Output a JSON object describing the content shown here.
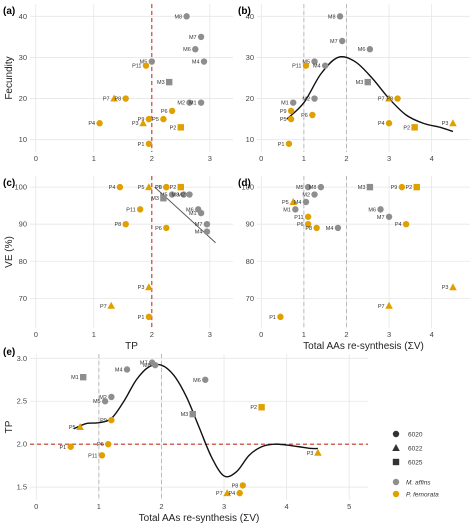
{
  "colors": {
    "m_affins": "#8e8e8e",
    "p_femorata": "#e0a000",
    "grid": "#e6e6e6",
    "ref_red": "#c0392b",
    "ref_gray": "#b5b5b5",
    "curve": "#111111"
  },
  "legend": {
    "shapes": [
      {
        "label": "6020",
        "shape": "circle"
      },
      {
        "label": "6022",
        "shape": "triangle"
      },
      {
        "label": "6025",
        "shape": "square"
      }
    ],
    "species": [
      {
        "label": "M. affins",
        "color": "#8e8e8e"
      },
      {
        "label": "P. femorata",
        "color": "#e0a000"
      }
    ]
  },
  "chart_data": [
    {
      "panel_label": "(a)",
      "type": "scatter",
      "xlabel": "",
      "ylabel": "Fecundity",
      "xlim": [
        -0.1,
        3.4
      ],
      "ylim": [
        7,
        43
      ],
      "xticks": [
        0,
        1,
        2,
        3
      ],
      "yticks": [
        10,
        20,
        30,
        40
      ],
      "vlines": [
        {
          "x": 2,
          "style": "red-dashed"
        }
      ],
      "points": [
        {
          "label": "M8",
          "x": 2.6,
          "y": 40,
          "sp": "M",
          "shape": "circle"
        },
        {
          "label": "M7",
          "x": 2.85,
          "y": 35,
          "sp": "M",
          "shape": "circle"
        },
        {
          "label": "M6",
          "x": 2.75,
          "y": 32,
          "sp": "M",
          "shape": "circle"
        },
        {
          "label": "M4",
          "x": 2.9,
          "y": 29,
          "sp": "M",
          "shape": "circle"
        },
        {
          "label": "M5",
          "x": 2.0,
          "y": 29,
          "sp": "M",
          "shape": "circle"
        },
        {
          "label": "M3",
          "x": 2.3,
          "y": 24,
          "sp": "M",
          "shape": "square"
        },
        {
          "label": "M2",
          "x": 2.65,
          "y": 19,
          "sp": "M",
          "shape": "circle"
        },
        {
          "label": "M1",
          "x": 2.85,
          "y": 19,
          "sp": "M",
          "shape": "circle"
        },
        {
          "label": "P11",
          "x": 1.9,
          "y": 28,
          "sp": "P",
          "shape": "circle"
        },
        {
          "label": "P7",
          "x": 1.35,
          "y": 20,
          "sp": "P",
          "shape": "triangle"
        },
        {
          "label": "P8",
          "x": 1.55,
          "y": 20,
          "sp": "P",
          "shape": "circle"
        },
        {
          "label": "P6",
          "x": 2.35,
          "y": 17,
          "sp": "P",
          "shape": "circle"
        },
        {
          "label": "P4",
          "x": 1.1,
          "y": 14,
          "sp": "P",
          "shape": "circle"
        },
        {
          "label": "P9",
          "x": 1.95,
          "y": 15,
          "sp": "P",
          "shape": "circle"
        },
        {
          "label": "P3",
          "x": 1.85,
          "y": 14,
          "sp": "P",
          "shape": "triangle"
        },
        {
          "label": "P5",
          "x": 2.2,
          "y": 15,
          "sp": "P",
          "shape": "circle"
        },
        {
          "label": "P2",
          "x": 2.5,
          "y": 13,
          "sp": "P",
          "shape": "square"
        },
        {
          "label": "P1",
          "x": 1.95,
          "y": 9,
          "sp": "P",
          "shape": "circle"
        }
      ]
    },
    {
      "panel_label": "(b)",
      "type": "scatter",
      "xlabel": "",
      "ylabel": "",
      "xlim": [
        -0.1,
        4.9
      ],
      "ylim": [
        7,
        43
      ],
      "xticks": [
        0,
        1,
        2,
        3,
        4
      ],
      "yticks": [
        10,
        20,
        30,
        40
      ],
      "vlines": [
        {
          "x": 1,
          "style": "gray-dashed"
        },
        {
          "x": 2,
          "style": "gray-dashed"
        }
      ],
      "curve": {
        "x": [
          0.6,
          1.0,
          1.4,
          1.8,
          2.2,
          2.6,
          3.0,
          3.4,
          3.8,
          4.2,
          4.5
        ],
        "y": [
          15,
          19,
          26,
          30,
          29,
          25,
          20,
          16,
          14,
          13,
          12
        ]
      },
      "points": [
        {
          "label": "M8",
          "x": 1.85,
          "y": 40,
          "sp": "M",
          "shape": "circle"
        },
        {
          "label": "M7",
          "x": 1.9,
          "y": 34,
          "sp": "M",
          "shape": "circle"
        },
        {
          "label": "M6",
          "x": 2.55,
          "y": 32,
          "sp": "M",
          "shape": "circle"
        },
        {
          "label": "M5",
          "x": 1.25,
          "y": 29,
          "sp": "M",
          "shape": "circle"
        },
        {
          "label": "M4",
          "x": 1.5,
          "y": 28,
          "sp": "M",
          "shape": "circle"
        },
        {
          "label": "P11",
          "x": 1.05,
          "y": 28,
          "sp": "P",
          "shape": "circle"
        },
        {
          "label": "M3",
          "x": 2.5,
          "y": 24,
          "sp": "M",
          "shape": "square"
        },
        {
          "label": "M2",
          "x": 1.25,
          "y": 20,
          "sp": "M",
          "shape": "circle"
        },
        {
          "label": "M1",
          "x": 0.75,
          "y": 19,
          "sp": "M",
          "shape": "circle"
        },
        {
          "label": "P7",
          "x": 3.0,
          "y": 20,
          "sp": "P",
          "shape": "triangle"
        },
        {
          "label": "P8",
          "x": 3.2,
          "y": 20,
          "sp": "P",
          "shape": "circle"
        },
        {
          "label": "P9",
          "x": 0.7,
          "y": 17,
          "sp": "P",
          "shape": "circle"
        },
        {
          "label": "P6",
          "x": 1.2,
          "y": 16,
          "sp": "P",
          "shape": "circle"
        },
        {
          "label": "P5",
          "x": 0.7,
          "y": 15,
          "sp": "P",
          "shape": "circle"
        },
        {
          "label": "P4",
          "x": 3.0,
          "y": 14,
          "sp": "P",
          "shape": "circle"
        },
        {
          "label": "P2",
          "x": 3.6,
          "y": 13,
          "sp": "P",
          "shape": "square"
        },
        {
          "label": "P3",
          "x": 4.5,
          "y": 14,
          "sp": "P",
          "shape": "triangle"
        },
        {
          "label": "P1",
          "x": 0.65,
          "y": 9,
          "sp": "P",
          "shape": "circle"
        }
      ]
    },
    {
      "panel_label": "(c)",
      "type": "scatter",
      "xlabel": "TP",
      "ylabel": "VE (%)",
      "xlim": [
        -0.1,
        3.4
      ],
      "ylim": [
        62,
        103
      ],
      "xticks": [
        0,
        1,
        2,
        3
      ],
      "yticks": [
        70,
        80,
        90,
        100
      ],
      "vlines": [
        {
          "x": 2,
          "style": "red-dashed"
        }
      ],
      "fitline": {
        "x": [
          2.05,
          3.1
        ],
        "y": [
          100,
          85
        ]
      },
      "points": [
        {
          "label": "P4",
          "x": 1.45,
          "y": 100,
          "sp": "P",
          "shape": "circle"
        },
        {
          "label": "P5",
          "x": 1.95,
          "y": 100,
          "sp": "P",
          "shape": "triangle"
        },
        {
          "label": "P9",
          "x": 2.25,
          "y": 100,
          "sp": "P",
          "shape": "circle"
        },
        {
          "label": "P6",
          "x": 2.25,
          "y": 100,
          "sp": "P",
          "shape": "circle"
        },
        {
          "label": "P2",
          "x": 2.5,
          "y": 100,
          "sp": "P",
          "shape": "square"
        },
        {
          "label": "M5",
          "x": 2.35,
          "y": 98,
          "sp": "M",
          "shape": "circle"
        },
        {
          "label": "M8",
          "x": 2.55,
          "y": 98,
          "sp": "M",
          "shape": "circle"
        },
        {
          "label": "M2",
          "x": 2.65,
          "y": 98,
          "sp": "M",
          "shape": "circle"
        },
        {
          "label": "M3",
          "x": 2.2,
          "y": 97,
          "sp": "M",
          "shape": "square"
        },
        {
          "label": "M6",
          "x": 2.8,
          "y": 94,
          "sp": "M",
          "shape": "circle"
        },
        {
          "label": "M1",
          "x": 2.85,
          "y": 93,
          "sp": "M",
          "shape": "circle"
        },
        {
          "label": "M7",
          "x": 2.95,
          "y": 90,
          "sp": "M",
          "shape": "circle"
        },
        {
          "label": "M4",
          "x": 2.95,
          "y": 88,
          "sp": "M",
          "shape": "circle"
        },
        {
          "label": "P11",
          "x": 1.8,
          "y": 94,
          "sp": "P",
          "shape": "circle"
        },
        {
          "label": "P8",
          "x": 1.55,
          "y": 90,
          "sp": "P",
          "shape": "circle"
        },
        {
          "label": "P6",
          "x": 2.25,
          "y": 89,
          "sp": "P",
          "shape": "circle"
        },
        {
          "label": "P3",
          "x": 1.95,
          "y": 73,
          "sp": "P",
          "shape": "triangle"
        },
        {
          "label": "P7",
          "x": 1.3,
          "y": 68,
          "sp": "P",
          "shape": "triangle"
        },
        {
          "label": "P1",
          "x": 1.95,
          "y": 65,
          "sp": "P",
          "shape": "circle"
        }
      ]
    },
    {
      "panel_label": "(d)",
      "type": "scatter",
      "xlabel": "Total AAs re-synthesis (ΣV)",
      "ylabel": "",
      "xlim": [
        -0.1,
        4.9
      ],
      "ylim": [
        62,
        103
      ],
      "xticks": [
        0,
        1,
        2,
        3,
        4
      ],
      "yticks": [
        70,
        80,
        90,
        100
      ],
      "vlines": [
        {
          "x": 1,
          "style": "gray-dashed"
        },
        {
          "x": 2,
          "style": "gray-dashed"
        }
      ],
      "points": [
        {
          "label": "M5",
          "x": 1.1,
          "y": 100,
          "sp": "M",
          "shape": "circle"
        },
        {
          "label": "M8",
          "x": 1.4,
          "y": 100,
          "sp": "M",
          "shape": "circle"
        },
        {
          "label": "M3",
          "x": 2.55,
          "y": 100,
          "sp": "M",
          "shape": "square"
        },
        {
          "label": "P9",
          "x": 3.3,
          "y": 100,
          "sp": "P",
          "shape": "circle"
        },
        {
          "label": "P2",
          "x": 3.65,
          "y": 100,
          "sp": "P",
          "shape": "square"
        },
        {
          "label": "M2",
          "x": 1.25,
          "y": 98,
          "sp": "M",
          "shape": "circle"
        },
        {
          "label": "P5",
          "x": 0.75,
          "y": 96,
          "sp": "P",
          "shape": "triangle"
        },
        {
          "label": "M4",
          "x": 1.05,
          "y": 96,
          "sp": "M",
          "shape": "circle"
        },
        {
          "label": "M6",
          "x": 2.8,
          "y": 94,
          "sp": "M",
          "shape": "circle"
        },
        {
          "label": "M1",
          "x": 0.8,
          "y": 94,
          "sp": "M",
          "shape": "circle"
        },
        {
          "label": "M7",
          "x": 3.0,
          "y": 92,
          "sp": "M",
          "shape": "circle"
        },
        {
          "label": "P11",
          "x": 1.1,
          "y": 92,
          "sp": "P",
          "shape": "circle"
        },
        {
          "label": "P6",
          "x": 1.1,
          "y": 90,
          "sp": "P",
          "shape": "circle"
        },
        {
          "label": "P8",
          "x": 1.3,
          "y": 89,
          "sp": "P",
          "shape": "circle"
        },
        {
          "label": "P4",
          "x": 3.4,
          "y": 90,
          "sp": "P",
          "shape": "circle"
        },
        {
          "label": "M4",
          "x": 1.8,
          "y": 89,
          "sp": "M",
          "shape": "circle"
        },
        {
          "label": "P3",
          "x": 4.5,
          "y": 73,
          "sp": "P",
          "shape": "triangle"
        },
        {
          "label": "P7",
          "x": 3.0,
          "y": 68,
          "sp": "P",
          "shape": "triangle"
        },
        {
          "label": "P1",
          "x": 0.45,
          "y": 65,
          "sp": "P",
          "shape": "circle"
        }
      ]
    },
    {
      "panel_label": "(e)",
      "type": "scatter",
      "xlabel": "Total AAs re-synthesis (ΣV)",
      "ylabel": "TP",
      "xlim": [
        -0.1,
        5.3
      ],
      "ylim": [
        1.35,
        3.05
      ],
      "xticks": [
        0,
        1,
        2,
        3,
        4,
        5
      ],
      "yticks": [
        1.5,
        2.0,
        2.5,
        3.0
      ],
      "ytick_labels": [
        "1.5",
        "2.0",
        "2.5",
        "3.0"
      ],
      "vlines": [
        {
          "x": 1,
          "style": "gray-dashed"
        },
        {
          "x": 2,
          "style": "gray-dashed"
        }
      ],
      "hlines": [
        {
          "y": 2.0,
          "style": "red-dashed"
        }
      ],
      "curve": {
        "x": [
          0.6,
          0.8,
          1.0,
          1.2,
          1.4,
          1.6,
          1.8,
          2.0,
          2.2,
          2.4,
          2.6,
          2.8,
          3.0,
          3.2,
          3.4,
          3.6,
          3.8,
          4.0,
          4.2,
          4.4,
          4.5
        ],
        "y": [
          2.18,
          2.24,
          2.25,
          2.3,
          2.5,
          2.75,
          2.9,
          2.92,
          2.8,
          2.55,
          2.2,
          1.85,
          1.63,
          1.68,
          1.87,
          1.97,
          2.0,
          1.99,
          1.97,
          1.95,
          1.95
        ]
      },
      "points": [
        {
          "label": "M1",
          "x": 0.75,
          "y": 2.78,
          "sp": "M",
          "shape": "square"
        },
        {
          "label": "M4",
          "x": 1.45,
          "y": 2.87,
          "sp": "M",
          "shape": "circle"
        },
        {
          "label": "M7",
          "x": 1.85,
          "y": 2.95,
          "sp": "M",
          "shape": "circle"
        },
        {
          "label": "M8",
          "x": 1.9,
          "y": 2.92,
          "sp": "M",
          "shape": "circle"
        },
        {
          "label": "M6",
          "x": 2.7,
          "y": 2.75,
          "sp": "M",
          "shape": "circle"
        },
        {
          "label": "M2",
          "x": 1.2,
          "y": 2.55,
          "sp": "M",
          "shape": "circle"
        },
        {
          "label": "M5",
          "x": 1.1,
          "y": 2.5,
          "sp": "M",
          "shape": "circle"
        },
        {
          "label": "M3",
          "x": 2.5,
          "y": 2.35,
          "sp": "M",
          "shape": "square"
        },
        {
          "label": "P2",
          "x": 3.6,
          "y": 2.43,
          "sp": "P",
          "shape": "square"
        },
        {
          "label": "P9",
          "x": 1.2,
          "y": 2.28,
          "sp": "P",
          "shape": "circle"
        },
        {
          "label": "P5",
          "x": 0.7,
          "y": 2.2,
          "sp": "P",
          "shape": "triangle"
        },
        {
          "label": "P6",
          "x": 1.15,
          "y": 2.0,
          "sp": "P",
          "shape": "circle"
        },
        {
          "label": "P1",
          "x": 0.55,
          "y": 1.97,
          "sp": "P",
          "shape": "circle"
        },
        {
          "label": "P11",
          "x": 1.05,
          "y": 1.87,
          "sp": "P",
          "shape": "circle"
        },
        {
          "label": "P3",
          "x": 4.5,
          "y": 1.9,
          "sp": "P",
          "shape": "triangle"
        },
        {
          "label": "P8",
          "x": 3.3,
          "y": 1.52,
          "sp": "P",
          "shape": "circle"
        },
        {
          "label": "P7",
          "x": 3.05,
          "y": 1.43,
          "sp": "P",
          "shape": "triangle"
        },
        {
          "label": "P4",
          "x": 3.25,
          "y": 1.43,
          "sp": "P",
          "shape": "circle"
        }
      ]
    }
  ]
}
